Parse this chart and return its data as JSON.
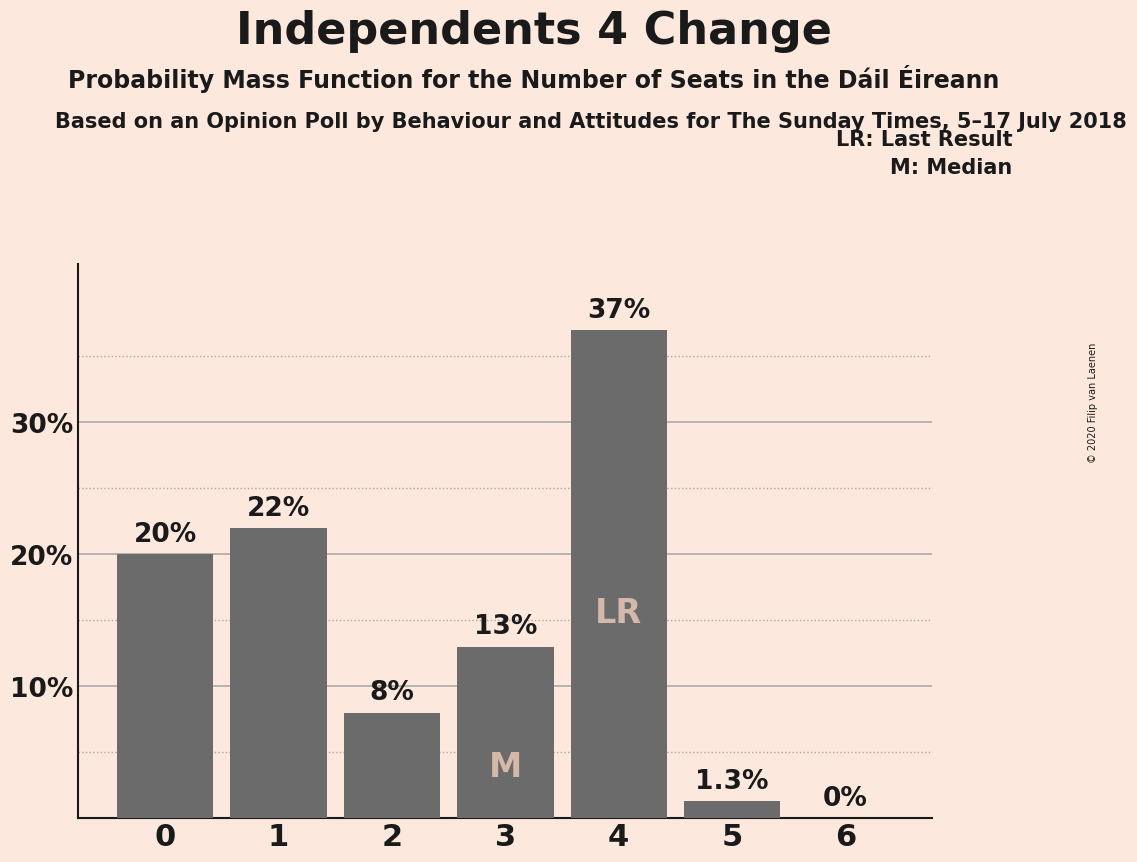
{
  "title": "Independents 4 Change",
  "subtitle": "Probability Mass Function for the Number of Seats in the Dáil Éireann",
  "footnote": "Based on an Opinion Poll by Behaviour and Attitudes for The Sunday Times, 5–17 July 2018",
  "copyright": "© 2020 Filip van Laenen",
  "categories": [
    0,
    1,
    2,
    3,
    4,
    5,
    6
  ],
  "values": [
    0.2,
    0.22,
    0.08,
    0.13,
    0.37,
    0.013,
    0.0
  ],
  "bar_labels": [
    "20%",
    "22%",
    "8%",
    "13%",
    "37%",
    "1.3%",
    "0%"
  ],
  "bar_color": "#6b6b6b",
  "background_color": "#fce8dc",
  "text_color": "#1a1a1a",
  "grid_color": "#aaaaaa",
  "yticks": [
    0.0,
    0.1,
    0.2,
    0.3
  ],
  "ytick_labels": [
    "",
    "10%",
    "20%",
    "30%"
  ],
  "ylim": [
    0,
    0.42
  ],
  "legend_text_LR": "LR: Last Result",
  "legend_text_M": "M: Median",
  "LR_bar": 4,
  "M_bar": 3,
  "dotted_lines": [
    0.05,
    0.15,
    0.25,
    0.35
  ],
  "solid_lines": [
    0.1,
    0.2,
    0.3
  ],
  "title_fontsize": 32,
  "subtitle_fontsize": 17,
  "footnote_fontsize": 15,
  "bar_label_fontsize": 19,
  "inner_label_fontsize": 24,
  "ytick_fontsize": 19,
  "xtick_fontsize": 22,
  "legend_fontsize": 15
}
